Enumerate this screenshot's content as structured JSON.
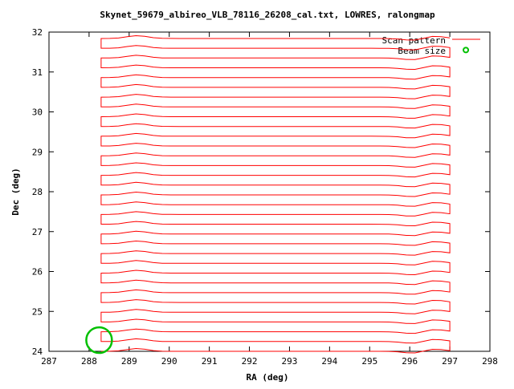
{
  "chart_data": {
    "type": "line",
    "title": "Skynet_59679_albireo_VLB_78116_26208_cal.txt, LOWRES, ralongmap",
    "xlabel": "RA (deg)",
    "ylabel": "Dec (deg)",
    "xlim": [
      287,
      298
    ],
    "ylim": [
      24,
      32
    ],
    "xticks": [
      "287",
      "288",
      "289",
      "290",
      "291",
      "292",
      "293",
      "294",
      "295",
      "296",
      "297",
      "298"
    ],
    "yticks": [
      "24",
      "25",
      "26",
      "27",
      "28",
      "29",
      "30",
      "31",
      "32"
    ],
    "grid": false,
    "legend_position": "top-right",
    "legend": {
      "scan_pattern": "Scan pattern",
      "beam_size": "Beam size"
    },
    "colors": {
      "scan_pattern": "#ff0000",
      "beam_size": "#00c000"
    },
    "scan_pattern": {
      "ra_start": 288.3,
      "ra_end": 297.0,
      "dec_start": 24.0,
      "dec_end": 31.8,
      "passes": 33,
      "dec_step": 0.245,
      "bumps": [
        {
          "ra": 289.2,
          "dec_offset": 0.07
        },
        {
          "ra": 296.1,
          "dec_offset": -0.05
        },
        {
          "ra": 296.6,
          "dec_offset": 0.06
        }
      ]
    },
    "beam_size": {
      "ra": 288.25,
      "dec": 24.28,
      "radius_deg": 0.32
    },
    "beam_marker_legend": {
      "ra": 297.4,
      "dec": 31.55,
      "radius_deg": 0.06
    }
  }
}
